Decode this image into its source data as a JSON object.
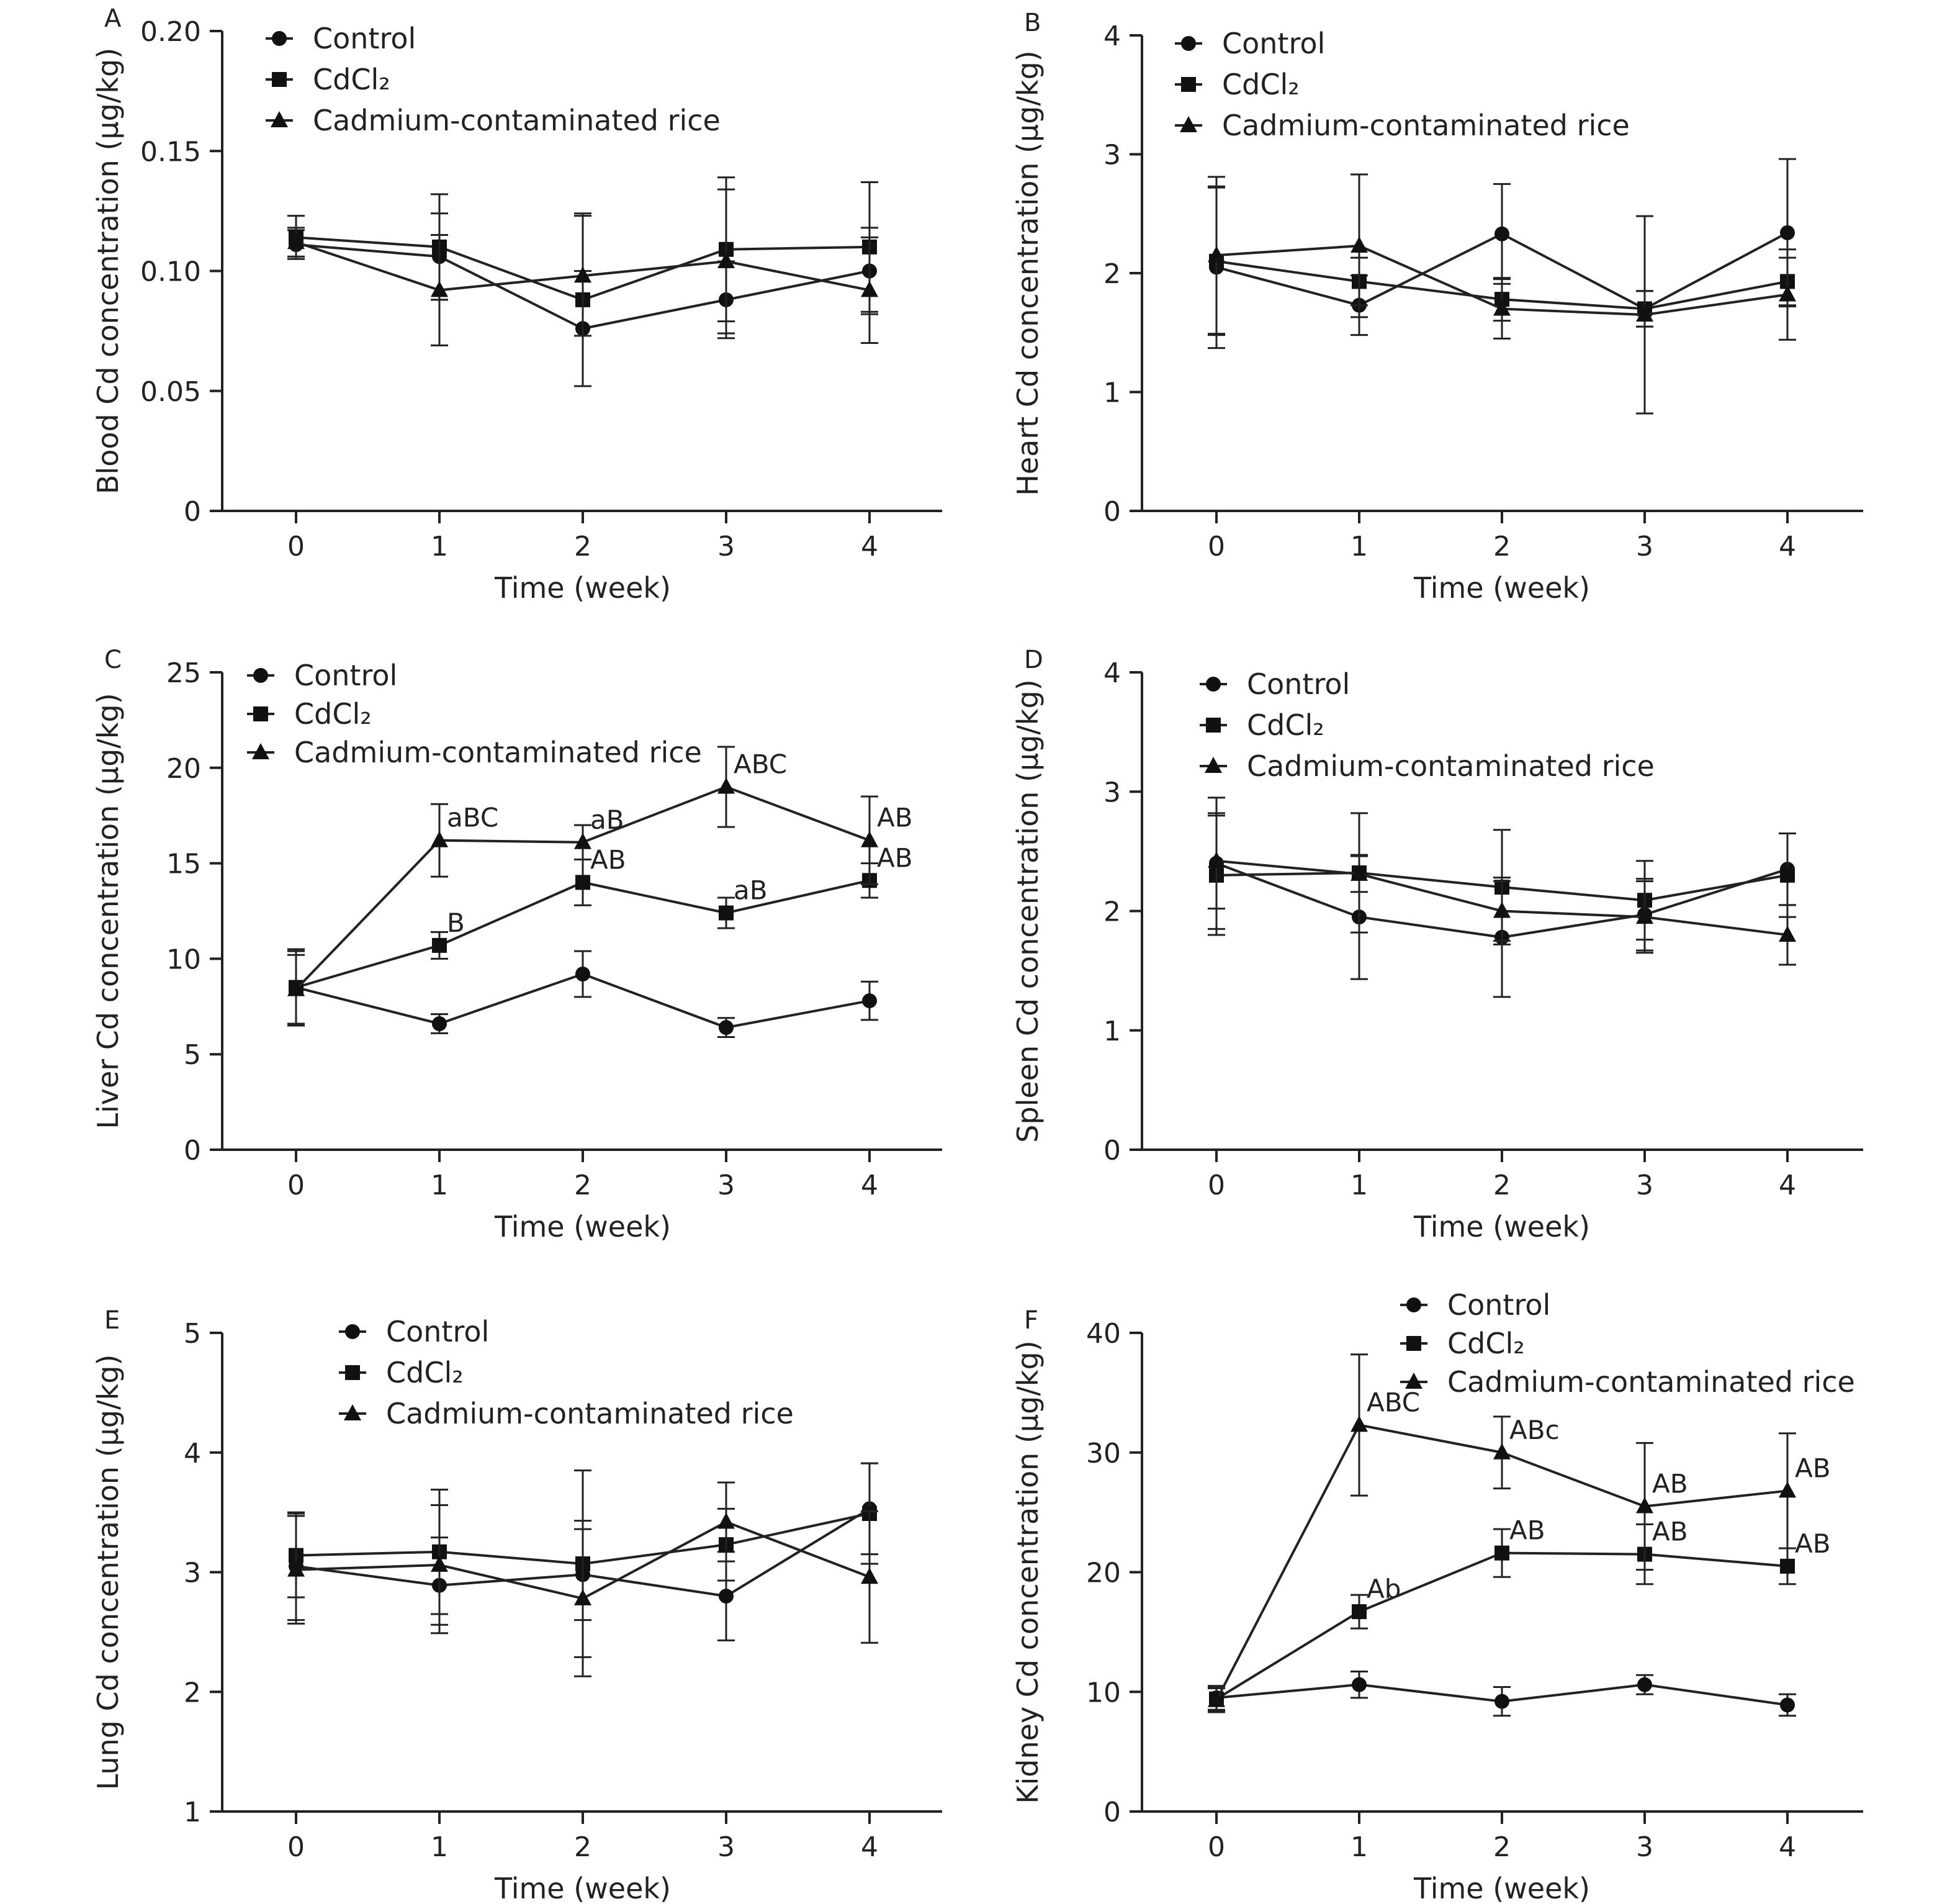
{
  "legend_entries": [
    "Control",
    "CdCl₂",
    "Cadmium-contaminated rice"
  ],
  "chart_data": [
    {
      "type": "line",
      "panel_label": "A",
      "ylabel": "Blood Cd concentration (μg/kg)",
      "xlabel": "Time (week)",
      "x": [
        0,
        1,
        2,
        3,
        4
      ],
      "x_ticks": [
        "0",
        "1",
        "2",
        "3",
        "4"
      ],
      "ylim": [
        0,
        0.2
      ],
      "y_ticks": [
        "0",
        "0.05",
        "0.10",
        "0.15",
        "0.20"
      ],
      "legend_position": "top-left",
      "series": [
        {
          "name": "Control",
          "marker": "circle",
          "values": [
            0.111,
            0.106,
            0.076,
            0.088,
            0.1
          ],
          "errors": [
            0.006,
            0.018,
            0.024,
            0.016,
            0.018
          ]
        },
        {
          "name": "CdCl₂",
          "marker": "square",
          "values": [
            0.114,
            0.11,
            0.088,
            0.109,
            0.11
          ],
          "errors": [
            0.009,
            0.022,
            0.036,
            0.03,
            0.027
          ]
        },
        {
          "name": "Cadmium-contaminated rice",
          "marker": "triangle",
          "values": [
            0.112,
            0.092,
            0.098,
            0.104,
            0.092
          ],
          "errors": [
            0.006,
            0.023,
            0.025,
            0.03,
            0.022
          ]
        }
      ],
      "annotations": []
    },
    {
      "type": "line",
      "panel_label": "B",
      "ylabel": "Heart  Cd concentration (μg/kg)",
      "xlabel": "Time (week)",
      "x": [
        0,
        1,
        2,
        3,
        4
      ],
      "x_ticks": [
        "0",
        "1",
        "2",
        "3",
        "4"
      ],
      "ylim": [
        0,
        4
      ],
      "y_ticks": [
        "0",
        "1",
        "2",
        "3",
        "4"
      ],
      "legend_position": "top-left",
      "series": [
        {
          "name": "Control",
          "marker": "circle",
          "values": [
            2.05,
            1.73,
            2.33,
            1.7,
            2.34
          ],
          "errors": [
            0.68,
            0.25,
            0.42,
            0.15,
            0.62
          ]
        },
        {
          "name": "CdCl₂",
          "marker": "square",
          "values": [
            2.1,
            1.93,
            1.78,
            1.7,
            1.93
          ],
          "errors": [
            0.62,
            0.2,
            0.18,
            0.15,
            0.2
          ]
        },
        {
          "name": "Cadmium-contaminated rice",
          "marker": "triangle",
          "values": [
            2.15,
            2.23,
            1.7,
            1.65,
            1.82
          ],
          "errors": [
            0.66,
            0.6,
            0.25,
            0.83,
            0.38
          ]
        }
      ],
      "annotations": []
    },
    {
      "type": "line",
      "panel_label": "C",
      "ylabel": "Liver Cd concentration (μg/kg)",
      "xlabel": "Time (week)",
      "x": [
        0,
        1,
        2,
        3,
        4
      ],
      "x_ticks": [
        "0",
        "1",
        "2",
        "3",
        "4"
      ],
      "ylim": [
        0,
        25
      ],
      "y_ticks": [
        "0",
        "5",
        "10",
        "15",
        "20",
        "25"
      ],
      "legend_position": "top-left",
      "series": [
        {
          "name": "Control",
          "marker": "circle",
          "values": [
            8.5,
            6.6,
            9.2,
            6.4,
            7.8
          ],
          "errors": [
            1.9,
            0.5,
            1.2,
            0.5,
            1.0
          ]
        },
        {
          "name": "CdCl₂",
          "marker": "square",
          "values": [
            8.5,
            10.7,
            14.0,
            12.4,
            14.1
          ],
          "errors": [
            2.0,
            0.7,
            1.2,
            0.8,
            0.9
          ]
        },
        {
          "name": "Cadmium-contaminated rice",
          "marker": "triangle",
          "values": [
            8.4,
            16.2,
            16.1,
            19.0,
            16.2
          ],
          "errors": [
            1.8,
            1.9,
            0.9,
            2.1,
            2.3
          ]
        }
      ],
      "annotations": [
        {
          "text": "aBC",
          "x": 1,
          "y": 16.2
        },
        {
          "text": "aB",
          "x": 2,
          "y": 16.1
        },
        {
          "text": "ABC",
          "x": 3,
          "y": 19.0
        },
        {
          "text": "AB",
          "x": 4,
          "y": 16.2
        },
        {
          "text": "B",
          "x": 1,
          "y": 10.7
        },
        {
          "text": "AB",
          "x": 2,
          "y": 14.0
        },
        {
          "text": "aB",
          "x": 3,
          "y": 12.4
        },
        {
          "text": "AB",
          "x": 4,
          "y": 14.1
        }
      ]
    },
    {
      "type": "line",
      "panel_label": "D",
      "ylabel": "Spleen Cd concentration (μg/kg)",
      "xlabel": "Time (week)",
      "x": [
        0,
        1,
        2,
        3,
        4
      ],
      "x_ticks": [
        "0",
        "1",
        "2",
        "3",
        "4"
      ],
      "ylim": [
        0,
        4
      ],
      "y_ticks": [
        "0",
        "1",
        "2",
        "3",
        "4"
      ],
      "legend_position": "top-left",
      "series": [
        {
          "name": "Control",
          "marker": "circle",
          "values": [
            2.4,
            1.95,
            1.78,
            1.97,
            2.35
          ],
          "errors": [
            0.55,
            0.52,
            0.5,
            0.3,
            0.3
          ]
        },
        {
          "name": "CdCl₂",
          "marker": "square",
          "values": [
            2.3,
            2.32,
            2.2,
            2.09,
            2.3
          ],
          "errors": [
            0.5,
            0.5,
            0.48,
            0.33,
            0.35
          ]
        },
        {
          "name": "Cadmium-contaminated rice",
          "marker": "triangle",
          "values": [
            2.42,
            2.31,
            2.0,
            1.95,
            1.8
          ],
          "errors": [
            0.4,
            0.15,
            0.25,
            0.3,
            0.25
          ]
        }
      ],
      "annotations": []
    },
    {
      "type": "line",
      "panel_label": "E",
      "ylabel": "Lung Cd concentration (μg/kg)",
      "xlabel": "Time (week)",
      "x": [
        0,
        1,
        2,
        3,
        4
      ],
      "x_ticks": [
        "0",
        "1",
        "2",
        "3",
        "4"
      ],
      "ylim": [
        1,
        5
      ],
      "y_ticks": [
        "1",
        "2",
        "3",
        "4",
        "5"
      ],
      "legend_position": "top-center",
      "series": [
        {
          "name": "Control",
          "marker": "circle",
          "values": [
            3.05,
            2.89,
            2.98,
            2.8,
            3.53
          ],
          "errors": [
            0.45,
            0.4,
            0.38,
            0.37,
            0.38
          ]
        },
        {
          "name": "CdCl₂",
          "marker": "square",
          "values": [
            3.14,
            3.17,
            3.07,
            3.23,
            3.49
          ],
          "errors": [
            0.35,
            0.52,
            0.78,
            0.3,
            0.42
          ]
        },
        {
          "name": "Cadmium-contaminated rice",
          "marker": "triangle",
          "values": [
            3.02,
            3.06,
            2.78,
            3.42,
            2.96
          ],
          "errors": [
            0.45,
            0.5,
            0.65,
            0.33,
            0.55
          ]
        }
      ],
      "annotations": []
    },
    {
      "type": "line",
      "panel_label": "F",
      "ylabel": "Kidney Cd concentration (μg/kg)",
      "xlabel": "Time (week)",
      "x": [
        0,
        1,
        2,
        3,
        4
      ],
      "x_ticks": [
        "0",
        "1",
        "2",
        "3",
        "4"
      ],
      "ylim": [
        0,
        40
      ],
      "y_ticks": [
        "0",
        "10",
        "20",
        "30",
        "40"
      ],
      "legend_position": "top-right",
      "series": [
        {
          "name": "Control",
          "marker": "circle",
          "values": [
            9.5,
            10.6,
            9.2,
            10.6,
            8.9
          ],
          "errors": [
            1.0,
            1.1,
            1.2,
            0.8,
            0.9
          ]
        },
        {
          "name": "CdCl₂",
          "marker": "square",
          "values": [
            9.4,
            16.7,
            21.6,
            21.5,
            20.5
          ],
          "errors": [
            1.0,
            1.4,
            2.0,
            2.5,
            1.5
          ]
        },
        {
          "name": "Cadmium-contaminated rice",
          "marker": "triangle",
          "values": [
            9.3,
            32.3,
            30.0,
            25.5,
            26.8
          ],
          "errors": [
            1.0,
            5.9,
            3.0,
            5.3,
            4.8
          ]
        }
      ],
      "annotations": [
        {
          "text": "ABC",
          "x": 1,
          "y": 32.3
        },
        {
          "text": "ABc",
          "x": 2,
          "y": 30.0
        },
        {
          "text": "AB",
          "x": 3,
          "y": 25.5
        },
        {
          "text": "AB",
          "x": 4,
          "y": 26.8
        },
        {
          "text": "Ab",
          "x": 1,
          "y": 16.7
        },
        {
          "text": "AB",
          "x": 2,
          "y": 21.6
        },
        {
          "text": "AB",
          "x": 3,
          "y": 21.5
        },
        {
          "text": "AB",
          "x": 4,
          "y": 20.5
        }
      ]
    }
  ]
}
